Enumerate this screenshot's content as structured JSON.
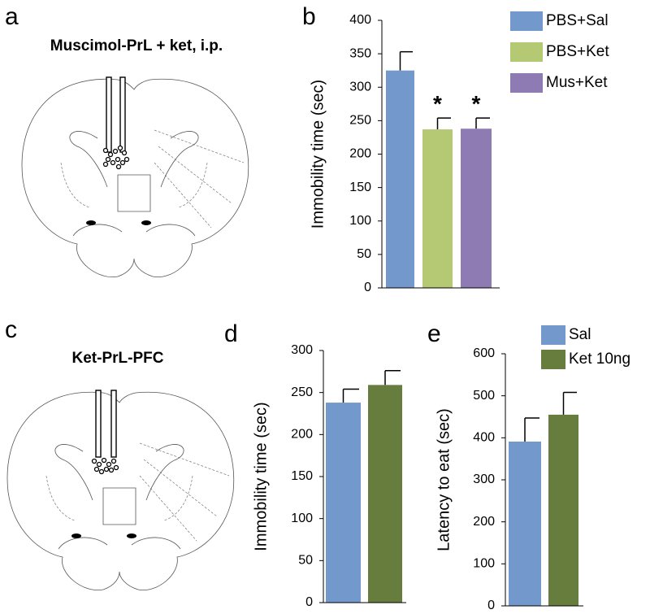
{
  "diagrams": [
    {
      "label": "a",
      "title": "Muscimol-PrL + ket, i.p."
    },
    {
      "label": "c",
      "title": "Ket-PrL-PFC"
    }
  ],
  "chart_data": [
    {
      "type": "bar",
      "label": "b",
      "y_label": "Immobility time (sec)",
      "categories": [
        "PBS+Sal",
        "PBS+Ket",
        "Mus+Ket"
      ],
      "colors": [
        "#7399cc",
        "#b5c873",
        "#8e7bb3"
      ],
      "values": [
        325,
        237,
        238
      ],
      "errors": [
        28,
        17,
        16
      ],
      "annotations": [
        null,
        "*",
        "*"
      ],
      "ylim": [
        0,
        400
      ],
      "yticks": [
        0,
        50,
        100,
        150,
        200,
        250,
        300,
        350,
        400
      ]
    },
    {
      "type": "bar",
      "label": "d",
      "y_label": "Immobility time (sec)",
      "colors": [
        "#7399cc",
        "#677d3d"
      ],
      "values": [
        238,
        259
      ],
      "errors": [
        16,
        17
      ],
      "ylim": [
        0,
        300
      ],
      "yticks": [
        0,
        50,
        100,
        150,
        200,
        250,
        300
      ]
    },
    {
      "type": "bar",
      "label": "e",
      "y_label": "Latency to eat (sec)",
      "categories": [
        "Sal",
        "Ket 10ng"
      ],
      "colors": [
        "#7399cc",
        "#677d3d"
      ],
      "values": [
        391,
        455
      ],
      "errors": [
        56,
        53
      ],
      "ylim": [
        0,
        600
      ],
      "yticks": [
        0,
        100,
        200,
        300,
        400,
        500,
        600
      ]
    }
  ]
}
